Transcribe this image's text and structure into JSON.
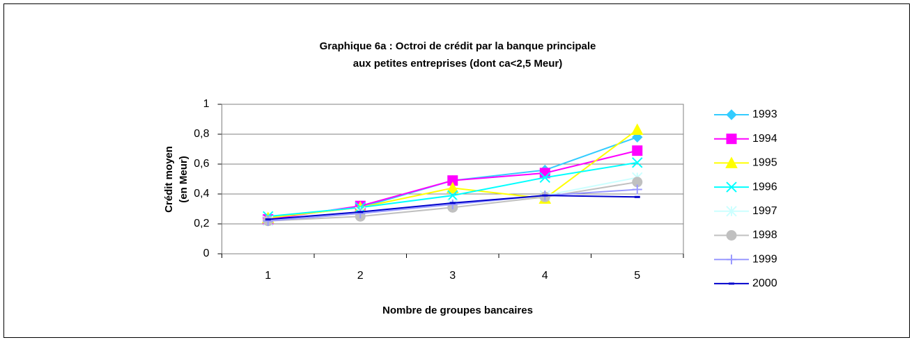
{
  "chart_data": {
    "type": "line",
    "title": [
      "Graphique 6a : Octroi de crédit par la banque principale",
      "aux petites entreprises (dont ca<2,5 Meur)"
    ],
    "y_label": [
      "Crédit moyen",
      "(en Meur)"
    ],
    "x_label": "Nombre de groupes bancaires",
    "categories": [
      "1",
      "2",
      "3",
      "4",
      "5"
    ],
    "ylim": [
      0,
      1
    ],
    "yticks": [
      0,
      {
        "value": 0.2,
        "label": "0,2"
      },
      {
        "value": 0.4,
        "label": "0,4"
      },
      {
        "value": 0.6,
        "label": "0,6"
      },
      {
        "value": 0.8,
        "label": "0,8"
      },
      1
    ],
    "grid": true,
    "legend": "right",
    "series": [
      {
        "name": "1993",
        "color": "#33ccff",
        "marker": "diamond",
        "values": [
          0.24,
          0.31,
          0.49,
          0.56,
          0.78
        ]
      },
      {
        "name": "1994",
        "color": "#ff00ff",
        "marker": "square",
        "values": [
          0.23,
          0.32,
          0.49,
          0.54,
          0.69
        ]
      },
      {
        "name": "1995",
        "color": "#ffff00",
        "marker": "triangle",
        "values": [
          0.24,
          0.31,
          0.44,
          0.37,
          0.83
        ]
      },
      {
        "name": "1996",
        "color": "#00ffff",
        "marker": "x",
        "values": [
          0.25,
          0.31,
          0.39,
          0.51,
          0.61
        ]
      },
      {
        "name": "1997",
        "color": "#ccffff",
        "marker": "star",
        "values": [
          0.22,
          0.28,
          0.33,
          0.39,
          0.51
        ]
      },
      {
        "name": "1998",
        "color": "#c0c0c0",
        "marker": "circle",
        "values": [
          0.22,
          0.25,
          0.31,
          0.38,
          0.48
        ]
      },
      {
        "name": "1999",
        "color": "#9999ff",
        "marker": "plus",
        "values": [
          0.22,
          0.27,
          0.33,
          0.39,
          0.43
        ]
      },
      {
        "name": "2000",
        "color": "#0000cc",
        "marker": "dash",
        "values": [
          0.23,
          0.28,
          0.34,
          0.39,
          0.38
        ]
      }
    ]
  }
}
